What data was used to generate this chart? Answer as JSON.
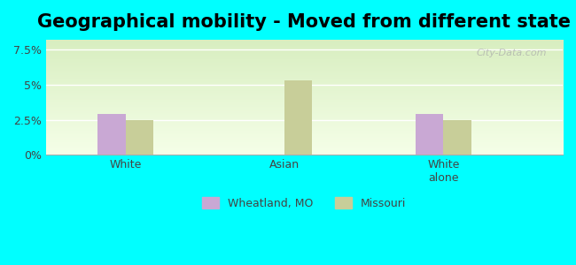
{
  "title": "Geographical mobility - Moved from different state",
  "categories": [
    "White",
    "Asian",
    "White\nalone"
  ],
  "wheatland_values": [
    2.9,
    0.0,
    2.9
  ],
  "missouri_values": [
    2.5,
    5.3,
    2.5
  ],
  "bar_color_wheatland": "#c9a8d4",
  "bar_color_missouri": "#c8ce99",
  "yticks": [
    0,
    2.5,
    5.0,
    7.5
  ],
  "ytick_labels": [
    "0%",
    "2.5%",
    "5%",
    "7.5%"
  ],
  "ylim": [
    0,
    8.2
  ],
  "outer_background": "#00FFFF",
  "legend_wheatland": "Wheatland, MO",
  "legend_missouri": "Missouri",
  "title_fontsize": 15,
  "bar_width": 0.35,
  "group_positions": [
    1,
    3,
    5
  ]
}
